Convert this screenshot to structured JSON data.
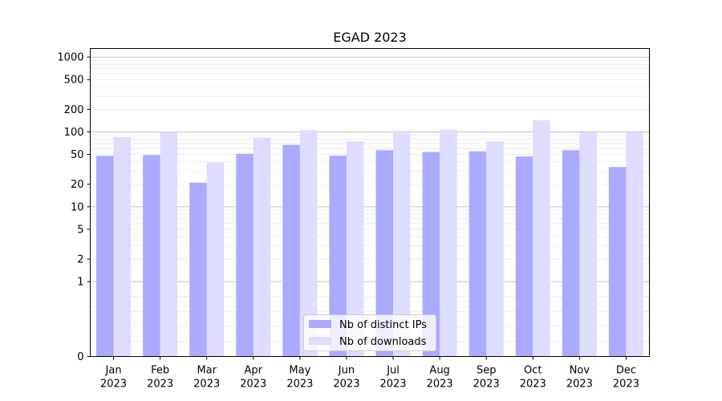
{
  "chart_data": {
    "type": "bar",
    "title": "EGAD 2023",
    "xlabel": "",
    "ylabel": "",
    "y_scale": "symlog",
    "ylim": [
      0,
      1300
    ],
    "y_ticks": [
      0,
      1,
      2,
      5,
      10,
      20,
      50,
      100,
      200,
      500,
      1000
    ],
    "y_tick_labels": [
      "0",
      "1",
      "2",
      "5",
      "10",
      "20",
      "50",
      "100",
      "200",
      "500",
      "1000"
    ],
    "categories": [
      "Jan",
      "Feb",
      "Mar",
      "Apr",
      "May",
      "Jun",
      "Jul",
      "Aug",
      "Sep",
      "Oct",
      "Nov",
      "Dec"
    ],
    "category_year": "2023",
    "series": [
      {
        "name": "Nb of distinct IPs",
        "color": "#aaaaff",
        "values": [
          48,
          49,
          21,
          51,
          67,
          48,
          57,
          54,
          55,
          47,
          57,
          34
        ]
      },
      {
        "name": "Nb of downloads",
        "color": "#ddddff",
        "values": [
          85,
          100,
          39,
          84,
          106,
          75,
          97,
          107,
          75,
          143,
          99,
          99
        ]
      }
    ],
    "grid": true,
    "legend_position": "bottom-center"
  }
}
